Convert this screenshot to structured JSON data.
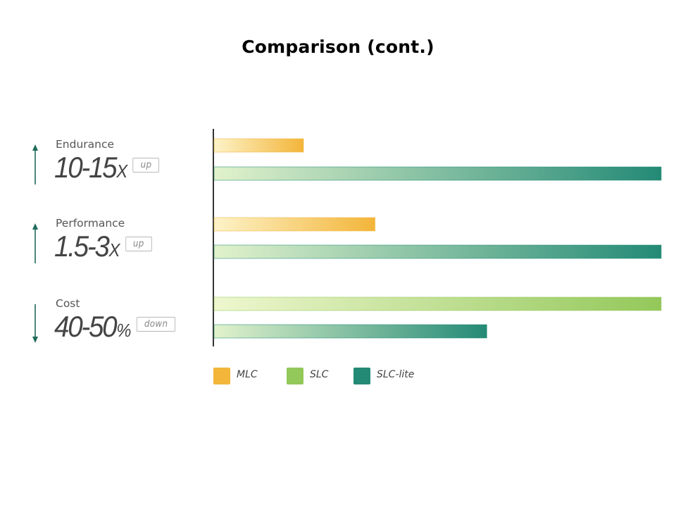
{
  "title": "Comparison (cont.)",
  "colors": {
    "mlc": "#f3b53a",
    "mlc_light": "#fdf3c8",
    "slc": "#93c85a",
    "slc_light": "#eef7cf",
    "slc_lite": "#238a76",
    "slc_lite_light": "#e1f2cc",
    "arrow": "#1f6b5a"
  },
  "metrics": [
    {
      "label": "Endurance",
      "value": "10-15",
      "unit": "X",
      "direction": "up",
      "arrow": "up-arrow-icon"
    },
    {
      "label": "Performance",
      "value": "1.5-3",
      "unit": "X",
      "direction": "up",
      "arrow": "up-arrow-icon"
    },
    {
      "label": "Cost",
      "value": "40-50",
      "unit": "%",
      "direction": "down",
      "arrow": "down-arrow-icon"
    }
  ],
  "legend": [
    {
      "name": "MLC",
      "key": "mlc"
    },
    {
      "name": "SLC",
      "key": "slc"
    },
    {
      "name": "SLC-lite",
      "key": "slc_lite"
    }
  ],
  "chart_data": {
    "type": "bar",
    "orientation": "horizontal",
    "title": "Comparison (cont.)",
    "xlim": [
      0,
      1
    ],
    "categories": [
      "Endurance",
      "Performance",
      "Cost"
    ],
    "series": [
      {
        "name": "MLC",
        "values": [
          0.2,
          0.36,
          null
        ]
      },
      {
        "name": "SLC",
        "values": [
          null,
          null,
          1.0
        ]
      },
      {
        "name": "SLC-lite",
        "values": [
          1.0,
          1.0,
          0.61
        ]
      }
    ],
    "legend_position": "bottom"
  }
}
